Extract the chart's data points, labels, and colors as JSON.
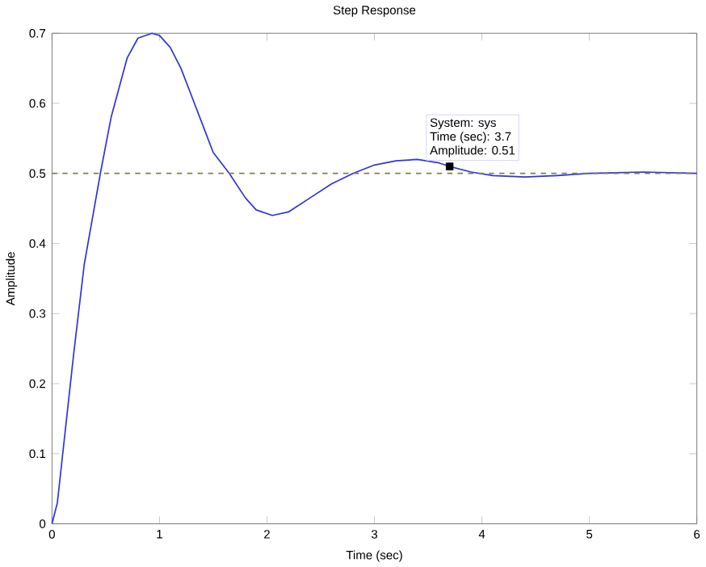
{
  "chart_data": {
    "type": "line",
    "title": "Step Response",
    "xlabel": "Time (sec)",
    "ylabel": "Amplitude",
    "xlim": [
      0,
      6
    ],
    "ylim": [
      0,
      0.7
    ],
    "xticks": [
      0,
      1,
      2,
      3,
      4,
      5,
      6
    ],
    "yticks": [
      0,
      0.1,
      0.2,
      0.3,
      0.4,
      0.5,
      0.6,
      0.7
    ],
    "series": [
      {
        "color": "#3333dd",
        "x": [
          0,
          0.05,
          0.1,
          0.2,
          0.3,
          0.45,
          0.55,
          0.7,
          0.8,
          0.93,
          1.0,
          1.1,
          1.2,
          1.3,
          1.4,
          1.5,
          1.65,
          1.8,
          1.9,
          2.05,
          2.2,
          2.4,
          2.6,
          2.8,
          3.0,
          3.2,
          3.4,
          3.6,
          3.7,
          3.9,
          4.1,
          4.4,
          4.7,
          5.0,
          5.5,
          6.0
        ],
        "values": [
          0,
          0.03,
          0.1,
          0.24,
          0.37,
          0.5,
          0.58,
          0.665,
          0.693,
          0.7,
          0.697,
          0.68,
          0.65,
          0.61,
          0.57,
          0.53,
          0.5,
          0.465,
          0.448,
          0.44,
          0.445,
          0.465,
          0.485,
          0.5,
          0.512,
          0.518,
          0.52,
          0.515,
          0.51,
          0.502,
          0.497,
          0.495,
          0.497,
          0.5,
          0.502,
          0.5
        ]
      },
      {
        "type": "scatter",
        "color": "#000000",
        "marker": "square",
        "x": [
          3.7
        ],
        "values": [
          0.51
        ]
      }
    ],
    "ref_lines": [
      {
        "axis": "y",
        "value": 0.5,
        "color": "#808050",
        "line_style": "dashed"
      }
    ],
    "annotations": [
      "System: sys",
      "Time (sec): 3.7",
      "Amplitude: 0.51"
    ],
    "grid": false
  }
}
